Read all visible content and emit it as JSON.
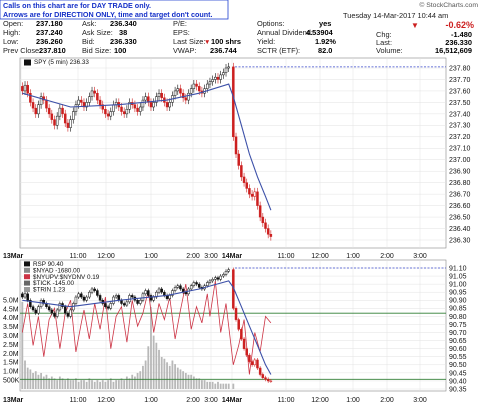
{
  "banner": {
    "line1": "Calls on this chart are for DAY TRADE only.",
    "line2": "Arrows are for DIRECTION ONLY, time and target don't count."
  },
  "header": {
    "date": "Tuesday 14-Mar-2017 10:44 am",
    "brand": "© StockCharts.com",
    "fields": {
      "open_label": "Open:",
      "open": "237.180",
      "high_label": "High:",
      "high": "237.240",
      "low_label": "Low:",
      "low": "236.260",
      "prev_close_label": "Prev Close:",
      "prev_close": "237.810",
      "ask_label": "Ask:",
      "ask": "236.340",
      "ask_size_label": "Ask Size:",
      "ask_size": "38",
      "bid_label": "Bid:",
      "bid": "236.330",
      "bid_size_label": "Bid Size:",
      "bid_size": "100",
      "pe_label": "P/E:",
      "pe": "",
      "eps_label": "EPS:",
      "eps": "",
      "last_size_label": "Last Size:",
      "last_size": "100 shrs",
      "vwap_label": "VWAP:",
      "vwap": "236.744",
      "options_label": "Options:",
      "options": "yes",
      "annual_div_label": "Annual Dividend:",
      "annual_div": "4.53904",
      "yield_label": "Yield:",
      "yield": "1.92%",
      "sctr_label": "SCTR (ETF):",
      "sctr": "82.0",
      "change_pct": "-0.62%",
      "chg_label": "Chg:",
      "chg": "-1.480",
      "last_label": "Last:",
      "last": "236.330",
      "volume_label": "Volume:",
      "volume": "16,512,609"
    }
  },
  "colors": {
    "price_ma": "#3c50a8",
    "down_candle": "#cc1f1f",
    "up_candle": "#111111",
    "dashed": "#3a4acc",
    "nyup": "#cc3344",
    "volume": "#b8b8b8",
    "grid": "#e2e2e2",
    "hline": "#2e7d32"
  },
  "chart_data": [
    {
      "type": "line",
      "legend": "SPY (5 min) 236.33",
      "y_ticks": [
        "237.80",
        "237.70",
        "237.60",
        "237.50",
        "237.40",
        "237.30",
        "237.20",
        "237.10",
        "237.00",
        "236.90",
        "236.80",
        "236.70",
        "236.60",
        "236.50",
        "236.40",
        "236.30"
      ],
      "x_ticks": [
        "13Mar",
        "11:00",
        "12:00",
        "1:00",
        "2:00",
        "3:00",
        "14Mar",
        "11:00",
        "12:00",
        "1:00",
        "2:00",
        "3:00"
      ],
      "ylim": [
        236.25,
        237.85
      ],
      "reference_line": 237.81,
      "series": [
        {
          "name": "SPY (5 min)",
          "x": [
            "09:30",
            "09:35",
            "09:40",
            "09:45",
            "09:50",
            "09:55",
            "10:00",
            "10:05",
            "10:10",
            "10:15",
            "10:20",
            "10:25",
            "10:30",
            "10:35",
            "10:40",
            "10:45",
            "10:50",
            "10:55",
            "11:00",
            "11:05",
            "11:10",
            "11:15",
            "11:20",
            "11:25",
            "11:30",
            "11:35",
            "11:40",
            "11:45",
            "11:50",
            "11:55",
            "12:00",
            "12:05",
            "12:10",
            "12:15",
            "12:20",
            "12:25",
            "12:30",
            "12:35",
            "12:40",
            "12:45",
            "12:50",
            "12:55",
            "13:00",
            "13:05",
            "13:10",
            "13:15",
            "13:20",
            "13:25",
            "13:30",
            "13:35",
            "13:40",
            "13:45",
            "13:50",
            "13:55",
            "14:00",
            "14:05",
            "14:10",
            "14:15",
            "14:20",
            "14:25",
            "14:30",
            "14:35",
            "14:40",
            "14:45",
            "14:50",
            "14:55",
            "15:00",
            "15:05",
            "15:10",
            "15:15",
            "15:20",
            "15:25",
            "15:30",
            "15:35",
            "15:40",
            "15:45",
            "15:50",
            "15:55",
            "d2-09:30",
            "d2-09:35",
            "d2-09:40",
            "d2-09:45",
            "d2-09:50",
            "d2-09:55",
            "d2-10:00",
            "d2-10:05",
            "d2-10:10",
            "d2-10:15",
            "d2-10:20",
            "d2-10:25",
            "d2-10:30",
            "d2-10:35",
            "d2-10:40"
          ],
          "close": [
            237.6,
            237.65,
            237.58,
            237.5,
            237.45,
            237.4,
            237.48,
            237.55,
            237.52,
            237.45,
            237.4,
            237.35,
            237.3,
            237.38,
            237.45,
            237.4,
            237.32,
            237.28,
            237.35,
            237.42,
            237.48,
            237.52,
            237.5,
            237.46,
            237.5,
            237.55,
            237.6,
            237.58,
            237.52,
            237.48,
            237.44,
            237.4,
            237.38,
            237.42,
            237.48,
            237.5,
            237.46,
            237.42,
            237.4,
            237.44,
            237.5,
            237.48,
            237.45,
            237.42,
            237.46,
            237.52,
            237.55,
            237.5,
            237.46,
            237.5,
            237.55,
            237.58,
            237.54,
            237.5,
            237.46,
            237.5,
            237.56,
            237.6,
            237.62,
            237.58,
            237.54,
            237.52,
            237.58,
            237.62,
            237.66,
            237.64,
            237.6,
            237.58,
            237.62,
            237.66,
            237.68,
            237.7,
            237.72,
            237.7,
            237.74,
            237.76,
            237.8,
            237.81,
            237.2,
            237.05,
            236.95,
            236.85,
            236.8,
            236.75,
            236.7,
            236.68,
            236.72,
            236.6,
            236.5,
            236.45,
            236.4,
            236.35,
            236.33
          ]
        },
        {
          "name": "Moving average",
          "x": [
            "09:30",
            "11:00",
            "12:30",
            "14:00",
            "15:00",
            "15:55",
            "d2-09:30",
            "d2-09:45",
            "d2-10:00",
            "d2-10:15",
            "d2-10:30",
            "d2-10:40"
          ],
          "values": [
            237.58,
            237.46,
            237.48,
            237.52,
            237.58,
            237.66,
            237.55,
            237.3,
            237.05,
            236.85,
            236.68,
            236.56
          ]
        }
      ]
    },
    {
      "type": "line",
      "legend": [
        "RSP 90.40",
        "$NYAD -1680.00",
        "$NYUPV:$NYDNV 0.19",
        "$TICK -145.00",
        "$TRIN 1.23"
      ],
      "y_ticks": [
        "91.10",
        "91.05",
        "91.00",
        "90.95",
        "90.90",
        "90.85",
        "90.80",
        "90.75",
        "90.70",
        "90.65",
        "90.60",
        "90.55",
        "90.50",
        "90.45",
        "90.40",
        "90.35"
      ],
      "volume_ticks": [
        "5.0M",
        "4.5M",
        "4.0M",
        "3.5M",
        "3.0M",
        "2.5M",
        "2.0M",
        "1.5M",
        "1.0M",
        "500K"
      ],
      "x_ticks": [
        "13Mar",
        "11:00",
        "12:00",
        "1:00",
        "2:00",
        "3:00",
        "14Mar",
        "11:00",
        "12:00",
        "1:00",
        "2:00",
        "3:00"
      ],
      "ylim": [
        90.33,
        91.13
      ],
      "reference_lines": [
        91.1,
        90.82,
        90.41
      ],
      "series": [
        {
          "name": "RSP",
          "close": [
            90.92,
            90.94,
            90.9,
            90.86,
            90.84,
            90.82,
            90.86,
            90.9,
            90.88,
            90.86,
            90.84,
            90.82,
            90.8,
            90.84,
            90.88,
            90.86,
            90.82,
            90.8,
            90.84,
            90.88,
            90.92,
            90.94,
            90.92,
            90.9,
            90.92,
            90.95,
            90.97,
            90.96,
            90.93,
            90.9,
            90.88,
            90.86,
            90.85,
            90.88,
            90.92,
            90.93,
            90.9,
            90.88,
            90.87,
            90.89,
            90.93,
            90.92,
            90.9,
            90.88,
            90.9,
            90.94,
            90.96,
            90.93,
            90.9,
            90.92,
            90.95,
            90.97,
            90.95,
            90.93,
            90.91,
            90.93,
            90.96,
            90.98,
            90.99,
            90.97,
            90.95,
            90.94,
            90.97,
            90.99,
            91.01,
            91.0,
            90.98,
            90.97,
            90.99,
            91.01,
            91.02,
            91.03,
            91.04,
            91.03,
            91.05,
            91.06,
            91.08,
            91.09,
            90.85,
            90.78,
            90.72,
            90.66,
            90.6,
            90.56,
            90.52,
            90.5,
            90.53,
            90.48,
            90.44,
            90.42,
            90.41,
            90.4,
            90.4
          ]
        },
        {
          "name": "Moving average",
          "values": [
            90.9,
            90.86,
            90.9,
            90.93,
            90.97,
            91.02,
            90.98,
            90.86,
            90.74,
            90.62,
            90.5,
            90.44
          ]
        },
        {
          "name": "$NYUPV:$NYDNV",
          "values": [
            90.7,
            90.88,
            90.62,
            90.8,
            90.55,
            90.78,
            90.85,
            90.6,
            90.82,
            90.9,
            90.58,
            90.76,
            90.84,
            90.66,
            90.88,
            90.72,
            90.92,
            90.6,
            90.8,
            90.86,
            90.64,
            90.9,
            90.74,
            90.82,
            90.96,
            90.7,
            90.88,
            90.78,
            90.92,
            90.66,
            90.84,
            91.0,
            90.72,
            90.86,
            90.76,
            90.94,
            90.8,
            91.02,
            90.7,
            90.88,
            90.5,
            90.62,
            90.78,
            90.44,
            90.7,
            90.58,
            90.8,
            90.76
          ]
        }
      ],
      "volume": [
        4.9,
        1.6,
        1.2,
        1.1,
        0.9,
        1.0,
        0.8,
        0.9,
        0.7,
        0.8,
        0.6,
        0.7,
        0.6,
        0.5,
        0.7,
        0.6,
        0.5,
        0.6,
        0.5,
        0.5,
        0.6,
        0.4,
        0.5,
        0.5,
        0.4,
        0.6,
        0.5,
        0.4,
        0.5,
        0.4,
        0.5,
        0.4,
        0.5,
        0.6,
        0.4,
        0.5,
        0.5,
        0.6,
        0.5,
        0.7,
        0.6,
        0.8,
        0.7,
        0.9,
        1.0,
        1.3,
        1.6,
        2.4,
        4.6,
        3.0,
        2.6,
        2.2,
        1.8,
        1.7,
        1.5,
        1.3,
        1.6,
        1.4,
        1.2,
        1.1,
        1.0,
        0.9,
        0.8,
        0.8,
        0.7,
        0.6,
        0.6,
        0.5,
        0.5,
        0.4,
        0.4,
        0.4,
        0.3,
        0.4,
        0.3,
        0.3,
        0.3,
        0.3,
        0.3
      ]
    }
  ]
}
